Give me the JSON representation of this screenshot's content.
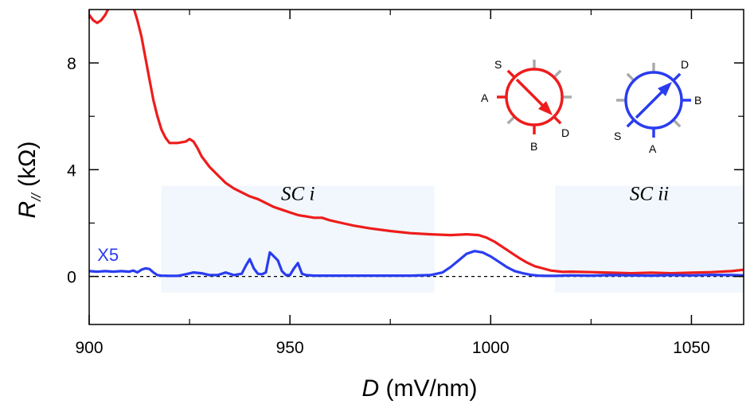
{
  "chart_data": {
    "type": "line",
    "xlabel_italic": "D",
    "xlabel_rest": " (mV/nm)",
    "ylabel_main": "R",
    "ylabel_sub": "//",
    "ylabel_rest": " (kΩ)",
    "xlim": [
      900,
      1063
    ],
    "ylim": [
      -1.8,
      10
    ],
    "xticks": [
      900,
      950,
      1000,
      1050
    ],
    "yticks": [
      0,
      4,
      8
    ],
    "xminor": [
      925,
      975,
      1025
    ],
    "yminor": [
      2,
      6
    ],
    "baseline": 0,
    "regions": [
      {
        "label": "SC i",
        "x0": 918,
        "x1": 986,
        "y0": -0.6,
        "y1": 3.4
      },
      {
        "label": "SC ii",
        "x0": 1016,
        "x1": 1063,
        "y0": -0.6,
        "y1": 3.4
      }
    ],
    "annotation": {
      "text": "X5",
      "x": 906,
      "y": 0.7,
      "color": "#2a3cf0"
    },
    "series": [
      {
        "name": "red",
        "color": "#ee1c1c",
        "x": [
          900,
          901,
          902,
          903,
          904,
          905,
          906,
          907,
          908,
          909,
          910,
          911,
          912,
          913,
          914,
          915,
          916,
          917,
          918,
          919,
          920,
          922,
          924,
          925,
          926,
          927,
          928,
          930,
          932,
          934,
          936,
          938,
          940,
          942,
          944,
          946,
          948,
          950,
          952,
          954,
          956,
          958,
          960,
          963,
          966,
          970,
          975,
          980,
          985,
          990,
          994,
          997,
          999,
          1001,
          1003,
          1005,
          1007,
          1009,
          1011,
          1013,
          1015,
          1018,
          1020,
          1025,
          1030,
          1035,
          1040,
          1045,
          1050,
          1055,
          1060,
          1063
        ],
        "values": [
          9.8,
          9.6,
          9.5,
          9.6,
          9.8,
          10.1,
          10.4,
          10.7,
          10.8,
          10.6,
          10.3,
          10.1,
          9.6,
          9.0,
          8.2,
          7.4,
          6.6,
          6.0,
          5.5,
          5.2,
          5.0,
          5.0,
          5.05,
          5.15,
          5.05,
          4.8,
          4.5,
          4.1,
          3.8,
          3.5,
          3.3,
          3.15,
          3.0,
          2.9,
          2.75,
          2.6,
          2.5,
          2.4,
          2.3,
          2.25,
          2.2,
          2.2,
          2.1,
          2.0,
          1.9,
          1.8,
          1.7,
          1.62,
          1.58,
          1.55,
          1.58,
          1.55,
          1.45,
          1.3,
          1.1,
          0.9,
          0.7,
          0.52,
          0.38,
          0.3,
          0.22,
          0.17,
          0.18,
          0.16,
          0.14,
          0.12,
          0.14,
          0.12,
          0.14,
          0.16,
          0.2,
          0.25
        ]
      },
      {
        "name": "blue",
        "color": "#2a3cf0",
        "x": [
          900,
          902,
          904,
          906,
          908,
          910,
          911,
          912,
          913,
          914,
          915,
          916,
          917,
          918,
          920,
          922,
          924,
          926,
          928,
          930,
          932,
          934,
          936,
          938,
          939,
          940,
          941,
          942,
          943,
          944,
          945,
          946,
          947,
          948,
          949,
          950,
          951,
          952,
          953,
          954,
          956,
          960,
          965,
          970,
          975,
          980,
          985,
          988,
          990,
          992,
          994,
          996,
          998,
          1000,
          1002,
          1004,
          1006,
          1008,
          1010,
          1012,
          1014,
          1016,
          1020,
          1025,
          1030,
          1035,
          1040,
          1045,
          1050,
          1055,
          1060,
          1063
        ],
        "values": [
          0.2,
          0.18,
          0.2,
          0.18,
          0.2,
          0.18,
          0.22,
          0.15,
          0.25,
          0.3,
          0.28,
          0.15,
          0.05,
          0.03,
          0.02,
          0.02,
          0.08,
          0.15,
          0.12,
          0.05,
          0.05,
          0.15,
          0.05,
          0.1,
          0.4,
          0.65,
          0.3,
          0.1,
          0.08,
          0.15,
          0.9,
          0.75,
          0.6,
          0.2,
          0.05,
          0.05,
          0.3,
          0.5,
          0.1,
          0.05,
          0.03,
          0.03,
          0.03,
          0.03,
          0.03,
          0.03,
          0.05,
          0.15,
          0.35,
          0.6,
          0.85,
          0.95,
          0.9,
          0.75,
          0.55,
          0.35,
          0.2,
          0.12,
          0.06,
          0.03,
          0.02,
          0.02,
          0.04,
          0.03,
          0.05,
          0.04,
          0.03,
          0.05,
          0.04,
          0.06,
          0.05,
          0.04
        ]
      }
    ],
    "dials": [
      {
        "color": "#ee1c1c",
        "arrow": "S to D",
        "labels": {
          "S": "S",
          "A": "A",
          "B": "B",
          "D": "D"
        }
      },
      {
        "color": "#2a3cf0",
        "arrow": "S to D",
        "labels": {
          "S": "S",
          "A": "A",
          "B": "B",
          "D": "D"
        }
      }
    ]
  }
}
